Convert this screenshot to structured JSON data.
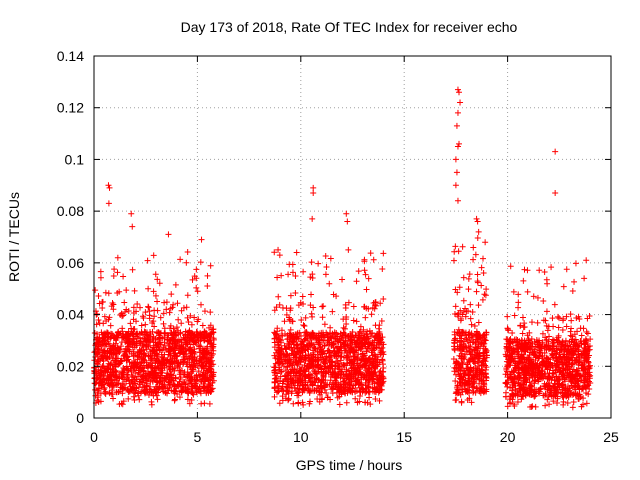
{
  "chart_data": {
    "type": "scatter",
    "title": "Day 173 of 2018, Rate Of TEC Index for receiver echo",
    "xlabel": "GPS time / hours",
    "ylabel": "ROTI / TECUs",
    "xlim": [
      0,
      25
    ],
    "ylim": [
      0,
      0.14
    ],
    "xticks": [
      0,
      5,
      10,
      15,
      20,
      25
    ],
    "xtick_labels": [
      "0",
      "5",
      "10",
      "15",
      "20",
      "25"
    ],
    "yticks": [
      0,
      0.02,
      0.04,
      0.06,
      0.08,
      0.1,
      0.12,
      0.14
    ],
    "ytick_labels": [
      "0",
      "0.02",
      "0.04",
      "0.06",
      "0.08",
      "0.1",
      "0.12",
      "0.14"
    ],
    "grid": true,
    "marker": "+",
    "color": "#ff0000",
    "series": [
      {
        "name": "ROTI",
        "segments": [
          {
            "x_start": 0.0,
            "x_end": 5.8,
            "typical_min": 0.005,
            "typical_max": 0.045,
            "median": 0.02
          },
          {
            "x_start": 8.7,
            "x_end": 14.0,
            "typical_min": 0.005,
            "typical_max": 0.045,
            "median": 0.02
          },
          {
            "x_start": 17.4,
            "x_end": 19.0,
            "typical_min": 0.005,
            "typical_max": 0.05,
            "median": 0.02
          },
          {
            "x_start": 19.9,
            "x_end": 24.0,
            "typical_min": 0.004,
            "typical_max": 0.04,
            "median": 0.018
          }
        ],
        "notable_points": [
          {
            "x": 0.7,
            "y": 0.09
          },
          {
            "x": 0.75,
            "y": 0.089
          },
          {
            "x": 0.72,
            "y": 0.083
          },
          {
            "x": 1.8,
            "y": 0.079
          },
          {
            "x": 1.85,
            "y": 0.074
          },
          {
            "x": 3.6,
            "y": 0.071
          },
          {
            "x": 5.2,
            "y": 0.069
          },
          {
            "x": 8.9,
            "y": 0.065
          },
          {
            "x": 9.8,
            "y": 0.064
          },
          {
            "x": 10.6,
            "y": 0.089
          },
          {
            "x": 10.6,
            "y": 0.087
          },
          {
            "x": 10.55,
            "y": 0.077
          },
          {
            "x": 12.2,
            "y": 0.079
          },
          {
            "x": 12.25,
            "y": 0.076
          },
          {
            "x": 12.3,
            "y": 0.065
          },
          {
            "x": 17.6,
            "y": 0.127
          },
          {
            "x": 17.65,
            "y": 0.126
          },
          {
            "x": 17.7,
            "y": 0.122
          },
          {
            "x": 17.6,
            "y": 0.118
          },
          {
            "x": 17.55,
            "y": 0.113
          },
          {
            "x": 17.65,
            "y": 0.106
          },
          {
            "x": 17.6,
            "y": 0.105
          },
          {
            "x": 17.5,
            "y": 0.1
          },
          {
            "x": 17.55,
            "y": 0.095
          },
          {
            "x": 17.5,
            "y": 0.09
          },
          {
            "x": 17.6,
            "y": 0.084
          },
          {
            "x": 18.5,
            "y": 0.077
          },
          {
            "x": 18.55,
            "y": 0.076
          },
          {
            "x": 18.6,
            "y": 0.072
          },
          {
            "x": 22.3,
            "y": 0.103
          },
          {
            "x": 22.3,
            "y": 0.087
          },
          {
            "x": 23.8,
            "y": 0.061
          },
          {
            "x": 23.7,
            "y": 0.054
          }
        ]
      }
    ]
  }
}
